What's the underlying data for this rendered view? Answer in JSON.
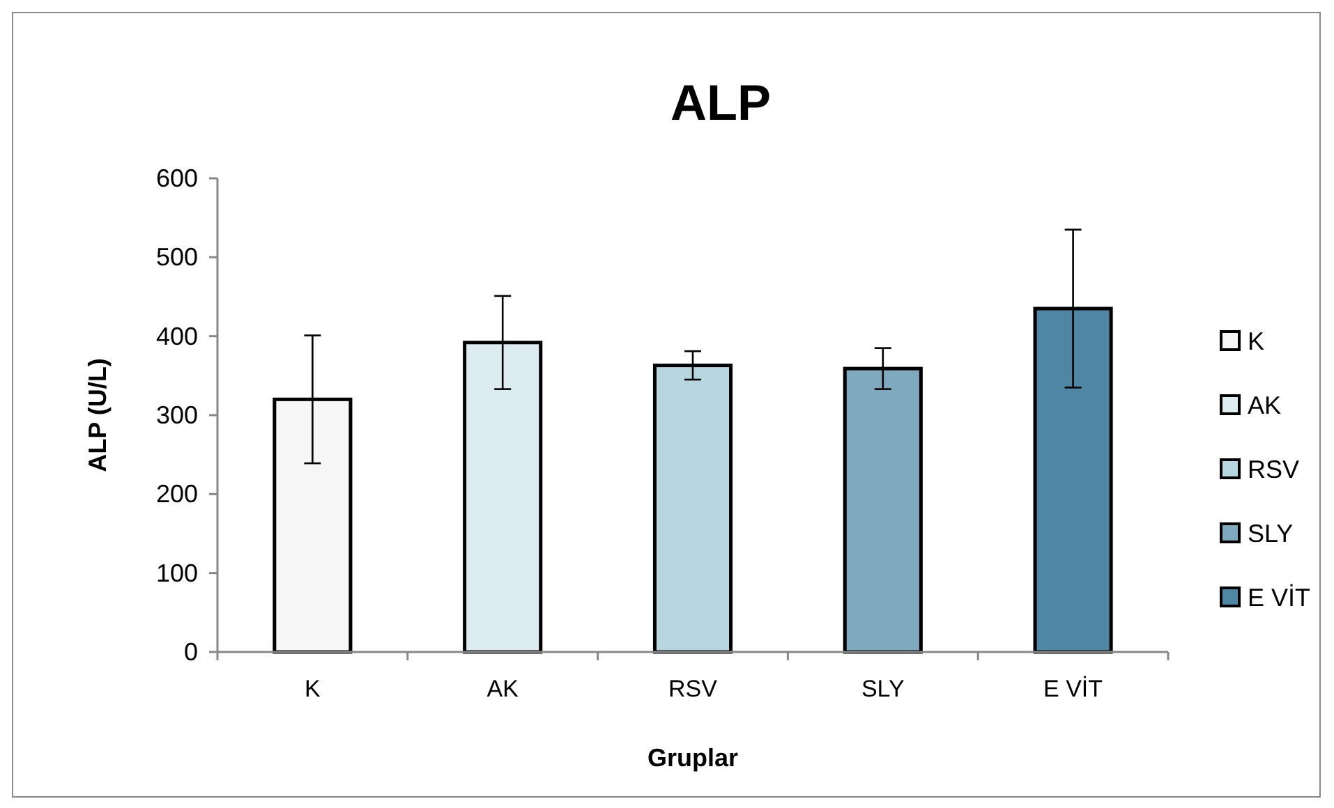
{
  "chart_data": {
    "type": "bar",
    "title": "ALP",
    "xlabel": "Gruplar",
    "ylabel": "ALP (U/L)",
    "categories": [
      "K",
      "AK",
      "RSV",
      "SLY",
      "E VİT"
    ],
    "series": [
      {
        "name": "K",
        "color": "#f6f6f6",
        "values": [
          320,
          null,
          null,
          null,
          null
        ],
        "errors": [
          81,
          null,
          null,
          null,
          null
        ]
      },
      {
        "name": "AK",
        "color": "#dcecf1",
        "values": [
          null,
          392,
          null,
          null,
          null
        ],
        "errors": [
          null,
          59,
          null,
          null,
          null
        ]
      },
      {
        "name": "RSV",
        "color": "#b8d6e0",
        "values": [
          null,
          null,
          363,
          null,
          null
        ],
        "errors": [
          null,
          null,
          18,
          null,
          null
        ]
      },
      {
        "name": "SLY",
        "color": "#7fa9bf",
        "values": [
          null,
          null,
          null,
          359,
          null
        ],
        "errors": [
          null,
          null,
          null,
          26,
          null
        ]
      },
      {
        "name": "E VİT",
        "color": "#4f86a3",
        "values": [
          null,
          null,
          null,
          null,
          435
        ],
        "errors": [
          null,
          null,
          null,
          null,
          100
        ]
      }
    ],
    "ylim": [
      0,
      600
    ],
    "yticks": [
      0,
      100,
      200,
      300,
      400,
      500,
      600
    ],
    "grid": false,
    "legend": "right"
  }
}
